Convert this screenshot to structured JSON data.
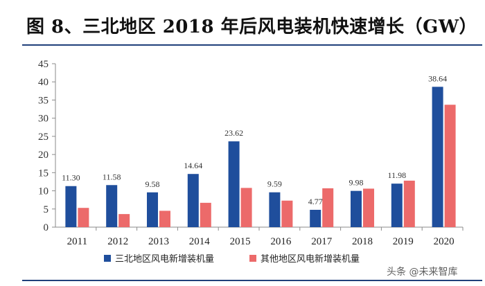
{
  "title": "图 8、三北地区 2018 年后风电装机快速增长（GW）",
  "watermark": "头条 @未来智库",
  "colors": {
    "series1": "#1f4e9c",
    "series2": "#ec6a6a",
    "axis": "#555555",
    "rule": "#1f3f7a"
  },
  "chart_data": {
    "type": "bar",
    "title": "图 8、三北地区 2018 年后风电装机快速增长（GW）",
    "xlabel": "",
    "ylabel": "",
    "ylim": [
      0,
      45
    ],
    "yticks": [
      0,
      5,
      10,
      15,
      20,
      25,
      30,
      35,
      40,
      45
    ],
    "legend_position": "bottom",
    "categories": [
      "2011",
      "2012",
      "2013",
      "2014",
      "2015",
      "2016",
      "2017",
      "2018",
      "2019",
      "2020"
    ],
    "series": [
      {
        "name": "三北地区风电新增装机量",
        "color": "#1f4e9c",
        "values": [
          11.3,
          11.58,
          9.58,
          14.64,
          23.62,
          9.59,
          4.77,
          9.98,
          11.98,
          38.64
        ],
        "labels": [
          "11.30",
          "11.58",
          "9.58",
          "14.64",
          "23.62",
          "9.59",
          "4.77",
          "9.98",
          "11.98",
          "38.64"
        ]
      },
      {
        "name": "其他地区风电新增装机量",
        "color": "#ec6a6a",
        "values": [
          5.3,
          3.6,
          4.5,
          6.7,
          10.8,
          7.3,
          10.7,
          10.6,
          12.8,
          33.7
        ]
      }
    ]
  }
}
